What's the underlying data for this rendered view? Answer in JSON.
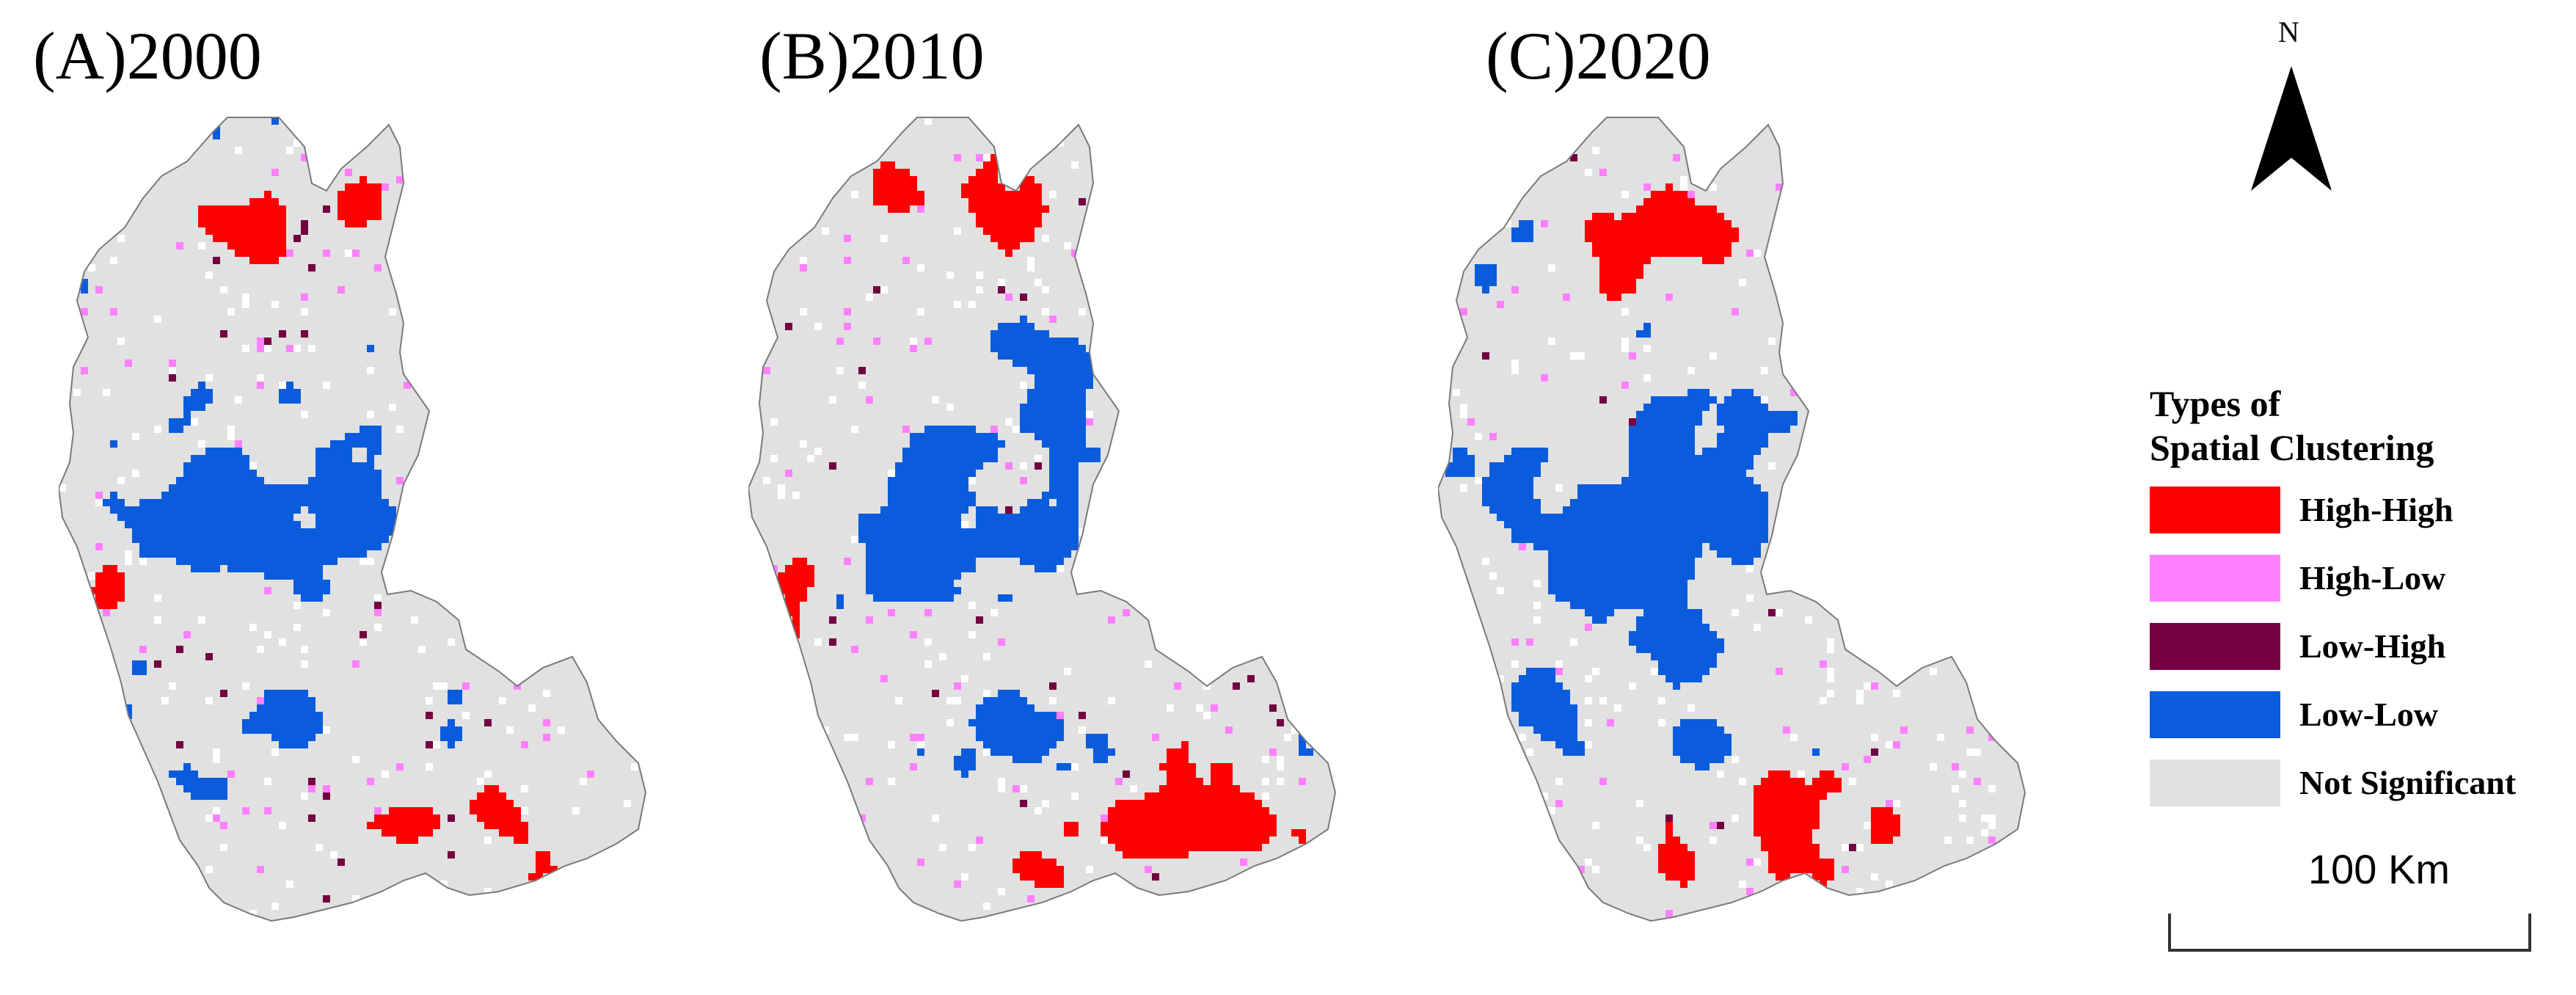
{
  "panels": [
    {
      "label": "(A)2000",
      "seed": 11,
      "bias": {
        "hh_north": 0.85,
        "ll_center": 0.75,
        "hh_south": 0.7
      }
    },
    {
      "label": "(B)2010",
      "seed": 37,
      "bias": {
        "hh_north": 0.75,
        "ll_center": 0.85,
        "hh_south": 0.85
      }
    },
    {
      "label": "(C)2020",
      "seed": 73,
      "bias": {
        "hh_north": 0.8,
        "ll_center": 0.8,
        "hh_south": 0.9
      }
    }
  ],
  "legend": {
    "title_line1": "Types of",
    "title_line2": "Spatial Clustering",
    "items": [
      {
        "label": "High-High",
        "color": "#ff0000"
      },
      {
        "label": "High-Low",
        "color": "#ff80ff"
      },
      {
        "label": "Low-High",
        "color": "#730040"
      },
      {
        "label": "Low-Low",
        "color": "#0a5cdc"
      },
      {
        "label": "Not Significant",
        "color": "#e1e1e1"
      }
    ]
  },
  "scale": {
    "label": "100 Km"
  },
  "north": {
    "label": "N"
  },
  "colors": {
    "outline": "#7a7a7a",
    "background": "#ffffff"
  }
}
